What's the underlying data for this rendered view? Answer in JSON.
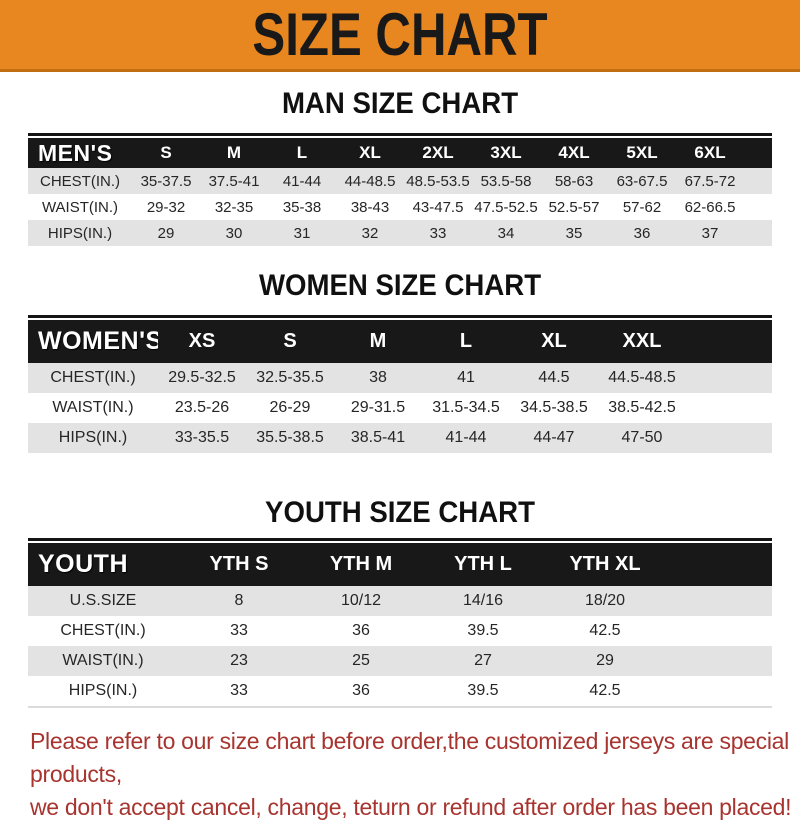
{
  "banner": {
    "title": "SIZE CHART"
  },
  "colors": {
    "banner_orange": "#E8861F",
    "banner_orange_dark": "#C26E12",
    "header_bar_black": "#181818",
    "row_shade_gray": "#E3E3E3",
    "footer_red": "#A7342F"
  },
  "men": {
    "heading": "MAN SIZE CHART",
    "label": "MEN'S",
    "sizes": [
      "S",
      "M",
      "L",
      "XL",
      "2XL",
      "3XL",
      "4XL",
      "5XL",
      "6XL"
    ],
    "rows": [
      {
        "label": "CHEST(IN.)",
        "values": [
          "35-37.5",
          "37.5-41",
          "41-44",
          "44-48.5",
          "48.5-53.5",
          "53.5-58",
          "58-63",
          "63-67.5",
          "67.5-72"
        ]
      },
      {
        "label": "WAIST(IN.)",
        "values": [
          "29-32",
          "32-35",
          "35-38",
          "38-43",
          "43-47.5",
          "47.5-52.5",
          "52.5-57",
          "57-62",
          "62-66.5"
        ]
      },
      {
        "label": "HIPS(IN.)",
        "values": [
          "29",
          "30",
          "31",
          "32",
          "33",
          "34",
          "35",
          "36",
          "37"
        ]
      }
    ]
  },
  "women": {
    "heading": "WOMEN SIZE CHART",
    "label": "WOMEN'S",
    "sizes": [
      "XS",
      "S",
      "M",
      "L",
      "XL",
      "XXL"
    ],
    "rows": [
      {
        "label": "CHEST(IN.)",
        "values": [
          "29.5-32.5",
          "32.5-35.5",
          "38",
          "41",
          "44.5",
          "44.5-48.5"
        ]
      },
      {
        "label": "WAIST(IN.)",
        "values": [
          "23.5-26",
          "26-29",
          "29-31.5",
          "31.5-34.5",
          "34.5-38.5",
          "38.5-42.5"
        ]
      },
      {
        "label": "HIPS(IN.)",
        "values": [
          "33-35.5",
          "35.5-38.5",
          "38.5-41",
          "41-44",
          "44-47",
          "47-50"
        ]
      }
    ]
  },
  "youth": {
    "heading": "YOUTH SIZE CHART",
    "label": "YOUTH",
    "sizes": [
      "YTH S",
      "YTH M",
      "YTH L",
      "YTH XL"
    ],
    "rows": [
      {
        "label": "U.S.SIZE",
        "values": [
          "8",
          "10/12",
          "14/16",
          "18/20"
        ]
      },
      {
        "label": "CHEST(IN.)",
        "values": [
          "33",
          "36",
          "39.5",
          "42.5"
        ]
      },
      {
        "label": "WAIST(IN.)",
        "values": [
          "23",
          "25",
          "27",
          "29"
        ]
      },
      {
        "label": "HIPS(IN.)",
        "values": [
          "33",
          "36",
          "39.5",
          "42.5"
        ]
      }
    ]
  },
  "footer": {
    "line1": "Please refer to our size chart before order,the customized jerseys are special products,",
    "line2": "we don't accept cancel, change, teturn or refund after order has been placed!"
  }
}
